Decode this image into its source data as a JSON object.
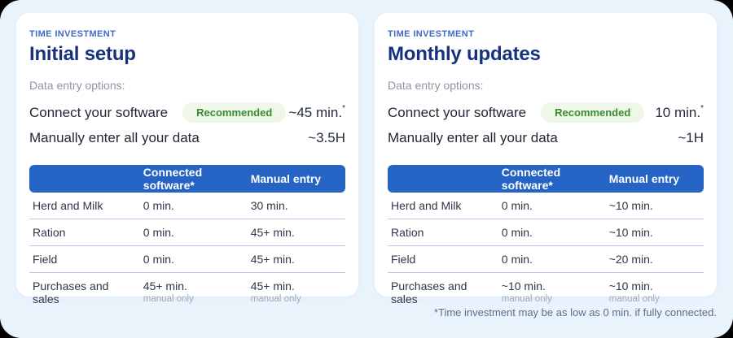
{
  "page": {
    "background_color": "#e9f3fc",
    "outer_color": "#000000",
    "card_color": "#ffffff",
    "accent_blue": "#2563c4",
    "badge_bg": "#eef7e8",
    "badge_text_color": "#3c8a33",
    "footnote": "*Time investment may be as low as 0 min. if fully connected."
  },
  "cards": [
    {
      "eyebrow": "TIME INVESTMENT",
      "title": "Initial setup",
      "subtitle": "Data entry options:",
      "options": [
        {
          "label": "Connect your software",
          "badge": "Recommended",
          "value": "~45 min.",
          "asterisk": "*"
        },
        {
          "label": "Manually enter all your data",
          "value": "~3.5H"
        }
      ],
      "table": {
        "headers": [
          "",
          "Connected software*",
          "Manual entry"
        ],
        "rows": [
          {
            "label": "Herd and Milk",
            "connected": "0 min.",
            "manual": "30 min."
          },
          {
            "label": "Ration",
            "connected": "0 min.",
            "manual": "45+ min."
          },
          {
            "label": "Field",
            "connected": "0 min.",
            "manual": "45+ min."
          },
          {
            "label": "Purchases and sales",
            "connected": "45+ min.",
            "connected_note": "manual only",
            "manual": "45+ min.",
            "manual_note": "manual only"
          }
        ]
      }
    },
    {
      "eyebrow": "TIME INVESTMENT",
      "title": "Monthly updates",
      "subtitle": "Data entry options:",
      "options": [
        {
          "label": "Connect your software",
          "badge": "Recommended",
          "value": "10 min.",
          "asterisk": "*"
        },
        {
          "label": "Manually enter all your data",
          "value": "~1H"
        }
      ],
      "table": {
        "headers": [
          "",
          "Connected software*",
          "Manual entry"
        ],
        "rows": [
          {
            "label": "Herd and Milk",
            "connected": "0 min.",
            "manual": "~10 min."
          },
          {
            "label": "Ration",
            "connected": "0 min.",
            "manual": "~10 min."
          },
          {
            "label": "Field",
            "connected": "0 min.",
            "manual": "~20 min."
          },
          {
            "label": "Purchases and sales",
            "connected": "~10 min.",
            "connected_note": "manual only",
            "manual": "~10 min.",
            "manual_note": "manual only"
          }
        ]
      }
    }
  ]
}
